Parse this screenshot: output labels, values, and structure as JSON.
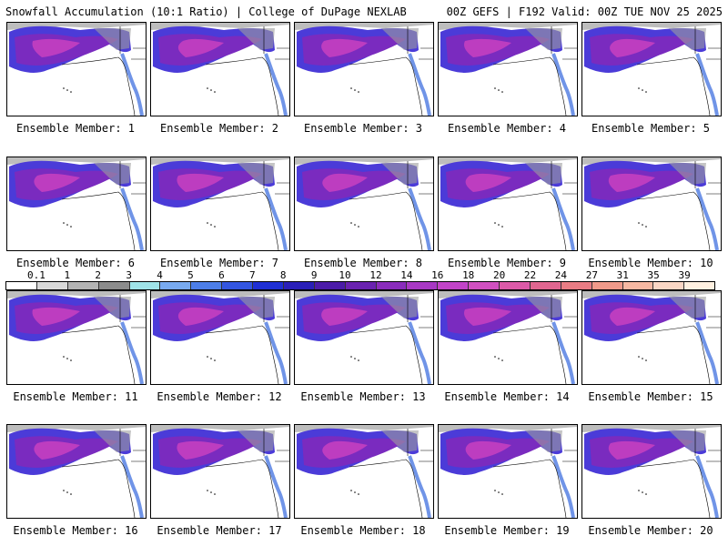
{
  "header": {
    "left_title": "Snowfall Accumulation (10:1 Ratio) | College of DuPage NEXLAB",
    "right_title": "00Z GEFS | F192 Valid: 00Z TUE NOV 25 2025"
  },
  "panels": [
    {
      "label": "Ensemble Member: 1"
    },
    {
      "label": "Ensemble Member: 2"
    },
    {
      "label": "Ensemble Member: 3"
    },
    {
      "label": "Ensemble Member: 4"
    },
    {
      "label": "Ensemble Member: 5"
    },
    {
      "label": "Ensemble Member: 6"
    },
    {
      "label": "Ensemble Member: 7"
    },
    {
      "label": "Ensemble Member: 8"
    },
    {
      "label": "Ensemble Member: 9"
    },
    {
      "label": "Ensemble Member: 10"
    },
    {
      "label": "Ensemble Member: 11"
    },
    {
      "label": "Ensemble Member: 12"
    },
    {
      "label": "Ensemble Member: 13"
    },
    {
      "label": "Ensemble Member: 14"
    },
    {
      "label": "Ensemble Member: 15"
    },
    {
      "label": "Ensemble Member: 16"
    },
    {
      "label": "Ensemble Member: 17"
    },
    {
      "label": "Ensemble Member: 18"
    },
    {
      "label": "Ensemble Member: 19"
    },
    {
      "label": "Ensemble Member: 20"
    }
  ],
  "colorbar": {
    "ticks": [
      "0.1",
      "1",
      "2",
      "3",
      "4",
      "5",
      "6",
      "7",
      "8",
      "9",
      "10",
      "12",
      "14",
      "16",
      "18",
      "20",
      "22",
      "24",
      "27",
      "31",
      "35",
      "39"
    ],
    "colors": [
      "#ffffff",
      "#d9d9d9",
      "#b3b3b3",
      "#8c8c8c",
      "#9fe3e8",
      "#78aaf0",
      "#4d7ee8",
      "#3355e0",
      "#1f2fd4",
      "#2a1fb8",
      "#4b1ba8",
      "#6a22b0",
      "#8a2cbc",
      "#a838c4",
      "#c244c8",
      "#d050c0",
      "#dc5aa8",
      "#e06690",
      "#e87c84",
      "#f09a8a",
      "#f6b8a2",
      "#fad6c4",
      "#fff0e0"
    ]
  }
}
